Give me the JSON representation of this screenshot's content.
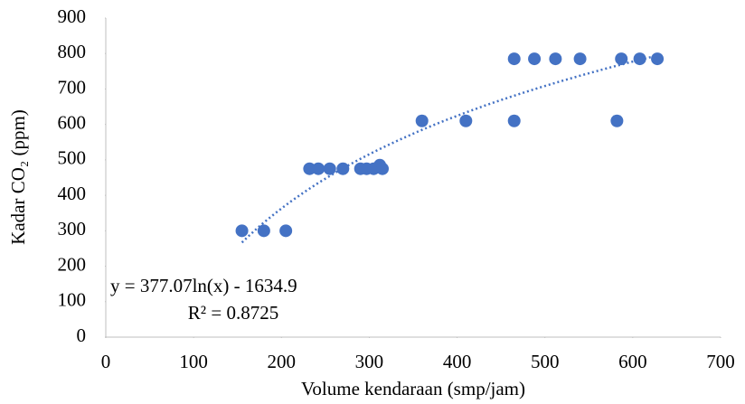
{
  "chart_data": {
    "type": "scatter",
    "x_label": "Volume kendaraan (smp/jam)",
    "y_label": "Kadar CO₂ (ppm)",
    "x": [
      155,
      180,
      205,
      232,
      242,
      255,
      270,
      290,
      297,
      305,
      312,
      315,
      360,
      410,
      465,
      465,
      488,
      512,
      540,
      582,
      587,
      608,
      628
    ],
    "values": [
      300,
      300,
      300,
      475,
      475,
      475,
      475,
      475,
      475,
      475,
      485,
      475,
      610,
      610,
      785,
      610,
      785,
      785,
      785,
      610,
      785,
      785,
      785
    ],
    "color": "#4472c4",
    "xlim": [
      0,
      700
    ],
    "xticks": [
      0,
      100,
      200,
      300,
      400,
      500,
      600,
      700
    ],
    "ylim": [
      0,
      900
    ],
    "yticks": [
      0,
      100,
      200,
      300,
      400,
      500,
      600,
      700,
      800,
      900
    ],
    "grid": false,
    "trendline": {
      "kind": "log",
      "coefficients": [
        377.07,
        -1634.9
      ],
      "equation": "y = 377.07ln(x) - 1634.9",
      "r2_label": "R² = 0.8725"
    }
  }
}
